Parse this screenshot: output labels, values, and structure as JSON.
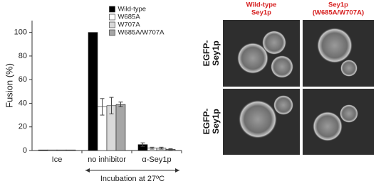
{
  "chart_data": {
    "type": "bar",
    "y_label": "Fusion (%)",
    "categories": [
      "Ice",
      "no inhibitor",
      "α-Sey1p"
    ],
    "series": [
      {
        "name": "Wild-type",
        "color": "#000000",
        "values": [
          0.5,
          100,
          5
        ],
        "errors": [
          null,
          null,
          1.5
        ]
      },
      {
        "name": "W685A",
        "color": "#ffffff",
        "values": [
          0.5,
          37,
          2
        ],
        "errors": [
          null,
          7,
          0.8
        ]
      },
      {
        "name": "W707A",
        "color": "#d9d9d9",
        "values": [
          0.5,
          38,
          2
        ],
        "errors": [
          null,
          7,
          0.8
        ]
      },
      {
        "name": "W685A/W707A",
        "color": "#a6a6a6",
        "values": [
          0.5,
          39,
          1
        ],
        "errors": [
          null,
          2,
          0.5
        ]
      }
    ],
    "ylim": [
      0,
      110
    ],
    "yticks": [
      0,
      20,
      40,
      60,
      80,
      100
    ],
    "legend": "upper right",
    "annotation": "Incubation at 27ºC"
  },
  "images": {
    "column_labels": [
      [
        "Wild-type",
        "Sey1p"
      ],
      [
        "Sey1p",
        "(W685A/W707A)"
      ]
    ],
    "row_labels": [
      [
        "EGFP-",
        "Sey1p"
      ],
      [
        "EGFP-",
        "Sey1p"
      ]
    ]
  }
}
